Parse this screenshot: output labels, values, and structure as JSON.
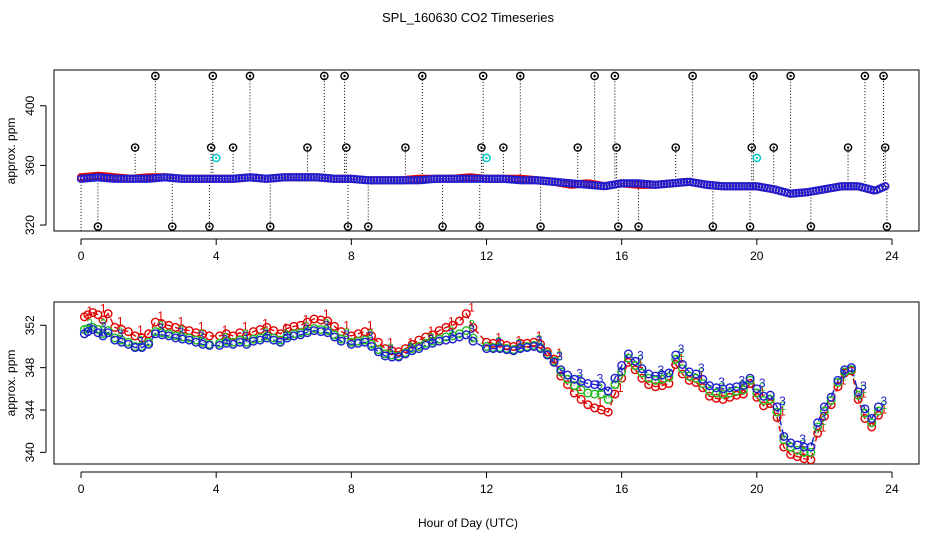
{
  "title": "SPL_160630  CO2 Timeseries",
  "xlabel": "Hour of Day (UTC)",
  "colors": {
    "flag_black": "#000000",
    "series_1": "#e00000",
    "series_2": "#22bb22",
    "series_3": "#1f1fd0",
    "cyan": "#00c8c8"
  },
  "chart_data": [
    {
      "type": "scatter",
      "ylabel": "approx. ppm",
      "xlim": [
        -0.8,
        24.8
      ],
      "ylim": [
        316,
        424
      ],
      "xticks": [
        0,
        4,
        8,
        12,
        16,
        20,
        24
      ],
      "yticks": [
        320,
        360,
        400
      ],
      "grid": false,
      "line_x": [
        0,
        0.5,
        1,
        1.5,
        2,
        2.5,
        3,
        3.5,
        4,
        4.5,
        5,
        5.5,
        6,
        6.5,
        7,
        7.5,
        8,
        8.5,
        9,
        9.5,
        10,
        10.5,
        11,
        11.5,
        12,
        12.5,
        13,
        13.5,
        14,
        14.5,
        15,
        15.5,
        16,
        16.5,
        17,
        17.5,
        18,
        18.5,
        19,
        19.5,
        20,
        20.5,
        21,
        21.5,
        22,
        22.5,
        23,
        23.5,
        23.8
      ],
      "series_1_values": [
        352,
        353,
        352,
        351,
        352,
        352,
        351,
        351,
        351,
        351,
        352,
        351,
        352,
        352,
        352,
        351,
        351,
        350,
        350,
        350,
        351,
        351,
        351,
        352,
        351,
        351,
        351,
        350,
        349,
        347,
        348,
        346,
        348,
        347,
        347,
        348,
        349,
        347,
        346,
        346,
        346,
        344,
        341,
        342,
        344,
        346,
        346,
        343,
        346
      ],
      "series_3_values": [
        351,
        352,
        351,
        351,
        351,
        352,
        351,
        351,
        351,
        351,
        352,
        351,
        352,
        352,
        352,
        351,
        351,
        350,
        350,
        350,
        350,
        351,
        351,
        351,
        351,
        351,
        350,
        350,
        349,
        348,
        347,
        346,
        348,
        348,
        347,
        348,
        349,
        347,
        346,
        346,
        346,
        344,
        341,
        342,
        344,
        346,
        346,
        343,
        346
      ],
      "flag_points": [
        {
          "x": 0.5,
          "y": 319
        },
        {
          "x": 1.6,
          "y": 372
        },
        {
          "x": 2.2,
          "y": 420
        },
        {
          "x": 2.7,
          "y": 319
        },
        {
          "x": 3.8,
          "y": 319
        },
        {
          "x": 3.85,
          "y": 372
        },
        {
          "x": 3.9,
          "y": 420
        },
        {
          "x": 4.5,
          "y": 372
        },
        {
          "x": 5.0,
          "y": 420
        },
        {
          "x": 5.6,
          "y": 319
        },
        {
          "x": 6.7,
          "y": 372
        },
        {
          "x": 7.2,
          "y": 420
        },
        {
          "x": 7.8,
          "y": 420
        },
        {
          "x": 7.85,
          "y": 372
        },
        {
          "x": 7.9,
          "y": 319
        },
        {
          "x": 8.5,
          "y": 319
        },
        {
          "x": 9.6,
          "y": 372
        },
        {
          "x": 10.1,
          "y": 420
        },
        {
          "x": 10.7,
          "y": 319
        },
        {
          "x": 11.8,
          "y": 319
        },
        {
          "x": 11.85,
          "y": 372
        },
        {
          "x": 11.9,
          "y": 420
        },
        {
          "x": 12.5,
          "y": 372
        },
        {
          "x": 13.0,
          "y": 420
        },
        {
          "x": 13.6,
          "y": 319
        },
        {
          "x": 14.7,
          "y": 372
        },
        {
          "x": 15.2,
          "y": 420
        },
        {
          "x": 15.8,
          "y": 420
        },
        {
          "x": 15.85,
          "y": 372
        },
        {
          "x": 15.9,
          "y": 319
        },
        {
          "x": 16.5,
          "y": 319
        },
        {
          "x": 17.6,
          "y": 372
        },
        {
          "x": 18.1,
          "y": 420
        },
        {
          "x": 18.7,
          "y": 319
        },
        {
          "x": 19.8,
          "y": 319
        },
        {
          "x": 19.85,
          "y": 372
        },
        {
          "x": 19.9,
          "y": 420
        },
        {
          "x": 20.5,
          "y": 372
        },
        {
          "x": 21.0,
          "y": 420
        },
        {
          "x": 21.6,
          "y": 319
        },
        {
          "x": 22.7,
          "y": 372
        },
        {
          "x": 23.2,
          "y": 420
        },
        {
          "x": 23.75,
          "y": 420
        },
        {
          "x": 23.8,
          "y": 372
        },
        {
          "x": 23.85,
          "y": 319
        }
      ],
      "cyan_points": [
        {
          "x": 4.0,
          "y": 365
        },
        {
          "x": 12.0,
          "y": 365
        },
        {
          "x": 20.0,
          "y": 365
        }
      ]
    },
    {
      "type": "line",
      "ylabel": "approx. ppm",
      "xlim": [
        -0.8,
        24.8
      ],
      "ylim": [
        338.9,
        354.2
      ],
      "xticks": [
        0,
        4,
        8,
        12,
        16,
        20,
        24
      ],
      "yticks": [
        340,
        344,
        348,
        352
      ],
      "grid": false,
      "series": [
        {
          "name": "1",
          "x": [
            0.1,
            0.2,
            0.35,
            0.5,
            0.65,
            0.8,
            1.0,
            1.2,
            1.4,
            1.6,
            1.8,
            2.0,
            2.2,
            2.4,
            2.6,
            2.8,
            3.0,
            3.2,
            3.4,
            3.6,
            3.8,
            4.1,
            4.3,
            4.5,
            4.7,
            4.9,
            5.1,
            5.3,
            5.5,
            5.7,
            5.9,
            6.1,
            6.3,
            6.5,
            6.7,
            6.9,
            7.1,
            7.3,
            7.5,
            7.7,
            8.0,
            8.2,
            8.4,
            8.6,
            8.8,
            9.0,
            9.2,
            9.4,
            9.6,
            9.8,
            10.0,
            10.2,
            10.4,
            10.6,
            10.8,
            11.0,
            11.2,
            11.4,
            11.6,
            12.0,
            12.2,
            12.4,
            12.6,
            12.8,
            13.0,
            13.2,
            13.4,
            13.6,
            13.8,
            14.0,
            14.2,
            14.4,
            14.6,
            14.8,
            15.0,
            15.2,
            15.4,
            15.6,
            15.8,
            16.0,
            16.2,
            16.4,
            16.6,
            16.8,
            17.0,
            17.2,
            17.4,
            17.6,
            17.8,
            18.0,
            18.2,
            18.4,
            18.6,
            18.8,
            19.0,
            19.2,
            19.4,
            19.6,
            19.8,
            20.0,
            20.2,
            20.4,
            20.6,
            20.8,
            21.0,
            21.2,
            21.4,
            21.6,
            21.8,
            22.0,
            22.2,
            22.4,
            22.6,
            22.8,
            23.0,
            23.2,
            23.4,
            23.6
          ],
          "y": [
            352.8,
            353.0,
            353.2,
            353.0,
            352.5,
            353.1,
            351.8,
            351.6,
            351.4,
            351.0,
            350.8,
            351.2,
            352.3,
            352.1,
            352.0,
            351.8,
            351.6,
            351.5,
            351.3,
            351.2,
            351.0,
            351.0,
            351.2,
            351.0,
            351.3,
            351.0,
            351.4,
            351.6,
            351.8,
            351.5,
            351.2,
            351.7,
            351.9,
            352.0,
            352.3,
            352.6,
            352.5,
            352.4,
            351.9,
            351.4,
            351.0,
            351.2,
            351.4,
            351.0,
            350.4,
            349.8,
            349.6,
            349.5,
            349.8,
            350.2,
            350.6,
            350.9,
            351.1,
            351.5,
            351.8,
            352.0,
            352.4,
            353.1,
            351.8,
            350.4,
            350.3,
            350.3,
            350.1,
            350.0,
            350.3,
            350.3,
            350.4,
            350.2,
            349.5,
            348.8,
            347.2,
            346.4,
            345.6,
            345.0,
            344.5,
            344.2,
            344.0,
            343.8,
            345.5,
            347.0,
            348.5,
            347.8,
            347.0,
            346.4,
            346.2,
            346.3,
            346.5,
            348.3,
            347.4,
            346.8,
            346.6,
            346.1,
            345.3,
            345.1,
            345.0,
            345.2,
            345.4,
            345.5,
            346.5,
            345.2,
            344.4,
            344.6,
            343.3,
            340.5,
            339.8,
            339.6,
            339.4,
            339.3,
            341.8,
            343.4,
            344.5,
            346.2,
            347.5,
            347.7,
            345.0,
            343.2,
            342.4,
            343.5
          ]
        },
        {
          "name": "2",
          "x": [
            0.1,
            0.2,
            0.35,
            0.5,
            0.65,
            0.8,
            1.0,
            1.2,
            1.4,
            1.6,
            1.8,
            2.0,
            2.2,
            2.4,
            2.6,
            2.8,
            3.0,
            3.2,
            3.4,
            3.6,
            3.8,
            4.1,
            4.3,
            4.5,
            4.7,
            4.9,
            5.1,
            5.3,
            5.5,
            5.7,
            5.9,
            6.1,
            6.3,
            6.5,
            6.7,
            6.9,
            7.1,
            7.3,
            7.5,
            7.7,
            8.0,
            8.2,
            8.4,
            8.6,
            8.8,
            9.0,
            9.2,
            9.4,
            9.6,
            9.8,
            10.0,
            10.2,
            10.4,
            10.6,
            10.8,
            11.0,
            11.2,
            11.4,
            11.6,
            12.0,
            12.2,
            12.4,
            12.6,
            12.8,
            13.0,
            13.2,
            13.4,
            13.6,
            13.8,
            14.0,
            14.2,
            14.4,
            14.6,
            14.8,
            15.0,
            15.2,
            15.4,
            15.6,
            15.8,
            16.0,
            16.2,
            16.4,
            16.6,
            16.8,
            17.0,
            17.2,
            17.4,
            17.6,
            17.8,
            18.0,
            18.2,
            18.4,
            18.6,
            18.8,
            19.0,
            19.2,
            19.4,
            19.6,
            19.8,
            20.0,
            20.2,
            20.4,
            20.6,
            20.8,
            21.0,
            21.2,
            21.4,
            21.6,
            21.8,
            22.0,
            22.2,
            22.4,
            22.6,
            22.8,
            23.0,
            23.2,
            23.4,
            23.6
          ],
          "y": [
            351.6,
            351.7,
            351.8,
            351.6,
            351.2,
            351.5,
            350.8,
            350.6,
            350.4,
            350.0,
            350.0,
            350.4,
            351.4,
            351.3,
            351.2,
            351.0,
            350.9,
            350.8,
            350.6,
            350.4,
            350.2,
            350.3,
            350.5,
            350.4,
            350.6,
            350.4,
            350.7,
            350.8,
            351.0,
            350.8,
            350.6,
            351.0,
            351.2,
            351.3,
            351.5,
            351.7,
            351.6,
            351.5,
            351.1,
            350.7,
            350.4,
            350.5,
            350.6,
            350.2,
            349.7,
            349.3,
            349.2,
            349.1,
            349.4,
            349.8,
            350.0,
            350.3,
            350.5,
            350.7,
            350.9,
            351.0,
            351.2,
            351.5,
            350.8,
            350.0,
            349.9,
            349.9,
            349.8,
            349.7,
            349.9,
            350.0,
            350.1,
            349.9,
            349.3,
            348.6,
            347.6,
            346.9,
            346.3,
            345.9,
            345.6,
            345.5,
            345.5,
            345.0,
            346.4,
            347.6,
            348.9,
            348.2,
            347.5,
            347.0,
            346.8,
            346.9,
            347.1,
            348.8,
            347.9,
            347.2,
            347.0,
            346.5,
            345.8,
            345.6,
            345.5,
            345.6,
            345.8,
            345.9,
            346.8,
            345.6,
            344.9,
            345.0,
            343.8,
            341.2,
            340.5,
            340.2,
            340.0,
            340.0,
            342.4,
            343.9,
            344.9,
            346.6,
            347.6,
            347.8,
            345.4,
            343.7,
            342.8,
            343.9
          ]
        },
        {
          "name": "3",
          "x": [
            0.1,
            0.2,
            0.35,
            0.5,
            0.65,
            0.8,
            1.0,
            1.2,
            1.4,
            1.6,
            1.8,
            2.0,
            2.2,
            2.4,
            2.6,
            2.8,
            3.0,
            3.2,
            3.4,
            3.6,
            3.8,
            4.1,
            4.3,
            4.5,
            4.7,
            4.9,
            5.1,
            5.3,
            5.5,
            5.7,
            5.9,
            6.1,
            6.3,
            6.5,
            6.7,
            6.9,
            7.1,
            7.3,
            7.5,
            7.7,
            8.0,
            8.2,
            8.4,
            8.6,
            8.8,
            9.0,
            9.2,
            9.4,
            9.6,
            9.8,
            10.0,
            10.2,
            10.4,
            10.6,
            10.8,
            11.0,
            11.2,
            11.4,
            11.6,
            12.0,
            12.2,
            12.4,
            12.6,
            12.8,
            13.0,
            13.2,
            13.4,
            13.6,
            13.8,
            14.0,
            14.2,
            14.4,
            14.6,
            14.8,
            15.0,
            15.2,
            15.4,
            15.6,
            15.8,
            16.0,
            16.2,
            16.4,
            16.6,
            16.8,
            17.0,
            17.2,
            17.4,
            17.6,
            17.8,
            18.0,
            18.2,
            18.4,
            18.6,
            18.8,
            19.0,
            19.2,
            19.4,
            19.6,
            19.8,
            20.0,
            20.2,
            20.4,
            20.6,
            20.8,
            21.0,
            21.2,
            21.4,
            21.6,
            21.8,
            22.0,
            22.2,
            22.4,
            22.6,
            22.8,
            23.0,
            23.2,
            23.4,
            23.6
          ],
          "y": [
            351.2,
            351.4,
            351.6,
            351.3,
            351.0,
            351.3,
            350.6,
            350.4,
            350.2,
            349.9,
            349.9,
            350.2,
            351.2,
            351.1,
            351.0,
            350.8,
            350.7,
            350.6,
            350.4,
            350.2,
            350.1,
            350.1,
            350.3,
            350.2,
            350.4,
            350.2,
            350.5,
            350.6,
            350.8,
            350.6,
            350.4,
            350.8,
            351.0,
            351.1,
            351.3,
            351.5,
            351.4,
            351.3,
            350.9,
            350.5,
            350.2,
            350.3,
            350.4,
            350.0,
            349.5,
            349.1,
            349.0,
            349.0,
            349.3,
            349.6,
            349.8,
            350.1,
            350.3,
            350.5,
            350.6,
            350.7,
            350.9,
            351.1,
            350.5,
            349.8,
            349.8,
            349.8,
            349.7,
            349.6,
            349.8,
            349.9,
            350.0,
            349.8,
            349.2,
            348.5,
            347.8,
            347.3,
            346.9,
            346.7,
            346.5,
            346.4,
            346.3,
            345.8,
            347.0,
            348.2,
            349.3,
            348.6,
            347.9,
            347.4,
            347.2,
            347.3,
            347.5,
            349.2,
            348.3,
            347.6,
            347.4,
            346.9,
            346.3,
            346.1,
            346.0,
            346.1,
            346.2,
            346.3,
            347.0,
            346.0,
            345.3,
            345.4,
            344.3,
            341.5,
            340.9,
            340.7,
            340.5,
            340.5,
            342.8,
            344.3,
            345.2,
            346.8,
            347.8,
            348.0,
            345.7,
            344.1,
            343.2,
            344.3
          ]
        }
      ]
    }
  ]
}
